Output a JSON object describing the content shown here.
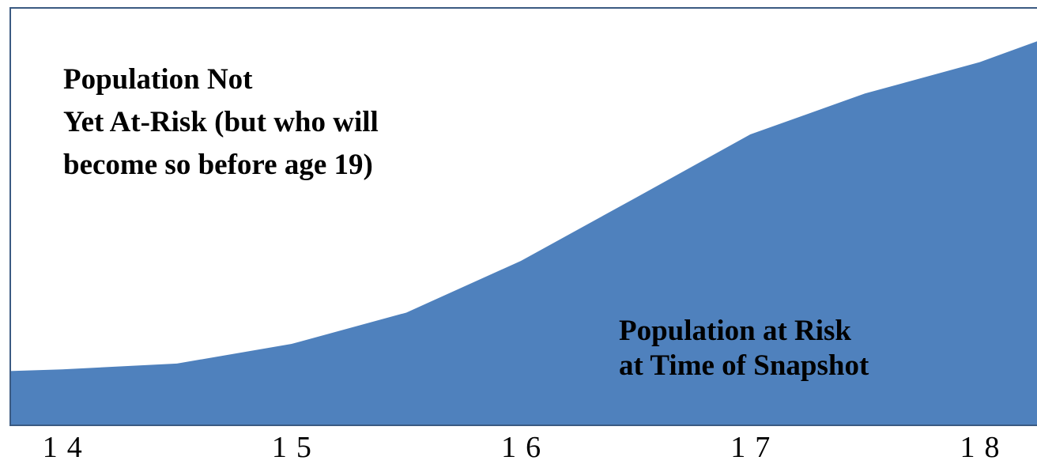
{
  "chart_data": {
    "type": "area",
    "x": [
      13.77,
      14,
      14.5,
      15,
      15.5,
      16,
      16.5,
      17,
      17.5,
      18,
      18.25
    ],
    "series": [
      {
        "color": "#4f81bd",
        "values": [
          0.13,
          0.134,
          0.148,
          0.195,
          0.27,
          0.394,
          0.545,
          0.697,
          0.795,
          0.87,
          0.92
        ]
      }
    ],
    "xlim": [
      13.77,
      18.25
    ],
    "xticks": [
      14,
      15,
      16,
      17,
      18
    ],
    "ylim": [
      0,
      1
    ],
    "annotations": [
      {
        "lines": [
          "Population Not",
          "Yet At-Risk (but who will",
          "become so before age 19)"
        ]
      },
      {
        "lines": [
          "Population at Risk",
          "at Time of Snapshot"
        ]
      }
    ]
  }
}
